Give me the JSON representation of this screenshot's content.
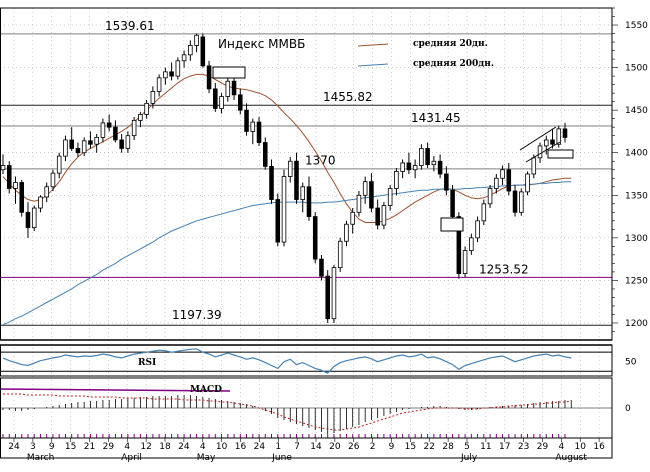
{
  "chart_data": {
    "type": "candlestick",
    "title": "Индекс ММВБ",
    "legend": [
      {
        "label": "средняя 20дн.",
        "color": "#a0522d"
      },
      {
        "label": "средняя 200дн.",
        "color": "#4682b4"
      }
    ],
    "ylim": [
      1180,
      1570
    ],
    "y_ticks": [
      1200,
      1250,
      1300,
      1350,
      1400,
      1450,
      1500,
      1550
    ],
    "levels": [
      {
        "value": 1539.61,
        "label": "1539.61",
        "line": true,
        "color": "#7f7f7f"
      },
      {
        "value": 1455.82,
        "label": "1455.82",
        "line": true,
        "color": "#202020"
      },
      {
        "value": 1431.45,
        "label": "1431.45",
        "line": true,
        "color": "#7f7f7f"
      },
      {
        "value": 1370,
        "label": "1370",
        "line": false,
        "color": "#7f7f7f"
      },
      {
        "value": 1381,
        "label": "",
        "line": true,
        "color": "#7f7f7f"
      },
      {
        "value": 1253.52,
        "label": "1253.52",
        "line": true,
        "color": "#800080"
      },
      {
        "value": 1197.39,
        "label": "1197.39",
        "line": true,
        "color": "#202020"
      }
    ],
    "x_tick_labels": [
      "24",
      "3",
      "9",
      "15",
      "21",
      "29",
      "4",
      "12",
      "18",
      "24",
      "4",
      "10",
      "16",
      "24",
      "1",
      "7",
      "14",
      "20",
      "26",
      "2",
      "9",
      "15",
      "22",
      "28",
      "5",
      "11",
      "17",
      "23",
      "29",
      "4",
      "10",
      "16"
    ],
    "month_labels": [
      "March",
      "April",
      "May",
      "June",
      "July",
      "August"
    ],
    "candles": [
      [
        1380,
        1398,
        1375,
        1385
      ],
      [
        1385,
        1390,
        1352,
        1358
      ],
      [
        1358,
        1372,
        1340,
        1365
      ],
      [
        1365,
        1368,
        1325,
        1330
      ],
      [
        1330,
        1342,
        1300,
        1312
      ],
      [
        1312,
        1338,
        1308,
        1335
      ],
      [
        1335,
        1350,
        1330,
        1348
      ],
      [
        1348,
        1365,
        1342,
        1360
      ],
      [
        1360,
        1380,
        1355,
        1376
      ],
      [
        1376,
        1400,
        1370,
        1396
      ],
      [
        1396,
        1420,
        1390,
        1415
      ],
      [
        1415,
        1430,
        1402,
        1405
      ],
      [
        1405,
        1412,
        1395,
        1400
      ],
      [
        1400,
        1418,
        1396,
        1414
      ],
      [
        1414,
        1425,
        1405,
        1410
      ],
      [
        1410,
        1422,
        1400,
        1418
      ],
      [
        1418,
        1440,
        1412,
        1435
      ],
      [
        1435,
        1445,
        1425,
        1430
      ],
      [
        1430,
        1438,
        1412,
        1415
      ],
      [
        1415,
        1422,
        1400,
        1405
      ],
      [
        1405,
        1425,
        1400,
        1420
      ],
      [
        1420,
        1442,
        1415,
        1438
      ],
      [
        1438,
        1448,
        1430,
        1445
      ],
      [
        1445,
        1462,
        1440,
        1458
      ],
      [
        1458,
        1478,
        1452,
        1472
      ],
      [
        1472,
        1492,
        1466,
        1488
      ],
      [
        1488,
        1500,
        1480,
        1495
      ],
      [
        1495,
        1506,
        1485,
        1490
      ],
      [
        1490,
        1512,
        1486,
        1508
      ],
      [
        1508,
        1520,
        1500,
        1515
      ],
      [
        1515,
        1532,
        1508,
        1526
      ],
      [
        1526,
        1540,
        1518,
        1538
      ],
      [
        1536,
        1540,
        1500,
        1502
      ],
      [
        1502,
        1508,
        1470,
        1475
      ],
      [
        1475,
        1482,
        1448,
        1452
      ],
      [
        1452,
        1470,
        1446,
        1466
      ],
      [
        1466,
        1488,
        1460,
        1484
      ],
      [
        1484,
        1490,
        1462,
        1468
      ],
      [
        1468,
        1475,
        1445,
        1450
      ],
      [
        1450,
        1458,
        1420,
        1425
      ],
      [
        1425,
        1440,
        1410,
        1436
      ],
      [
        1436,
        1442,
        1408,
        1412
      ],
      [
        1412,
        1418,
        1380,
        1384
      ],
      [
        1384,
        1392,
        1340,
        1345
      ],
      [
        1345,
        1352,
        1290,
        1295
      ],
      [
        1295,
        1380,
        1290,
        1372
      ],
      [
        1372,
        1395,
        1365,
        1390
      ],
      [
        1390,
        1400,
        1340,
        1345
      ],
      [
        1345,
        1365,
        1330,
        1360
      ],
      [
        1360,
        1372,
        1320,
        1325
      ],
      [
        1325,
        1330,
        1270,
        1275
      ],
      [
        1275,
        1280,
        1250,
        1255
      ],
      [
        1255,
        1262,
        1200,
        1205
      ],
      [
        1205,
        1268,
        1200,
        1265
      ],
      [
        1265,
        1300,
        1260,
        1296
      ],
      [
        1296,
        1320,
        1290,
        1316
      ],
      [
        1316,
        1335,
        1305,
        1330
      ],
      [
        1330,
        1355,
        1325,
        1350
      ],
      [
        1350,
        1372,
        1340,
        1366
      ],
      [
        1366,
        1376,
        1330,
        1335
      ],
      [
        1335,
        1345,
        1310,
        1315
      ],
      [
        1315,
        1342,
        1310,
        1338
      ],
      [
        1338,
        1362,
        1332,
        1358
      ],
      [
        1358,
        1382,
        1350,
        1378
      ],
      [
        1378,
        1392,
        1370,
        1388
      ],
      [
        1388,
        1400,
        1375,
        1380
      ],
      [
        1380,
        1392,
        1370,
        1385
      ],
      [
        1385,
        1410,
        1380,
        1405
      ],
      [
        1405,
        1412,
        1382,
        1386
      ],
      [
        1386,
        1396,
        1378,
        1390
      ],
      [
        1390,
        1398,
        1370,
        1375
      ],
      [
        1375,
        1384,
        1350,
        1356
      ],
      [
        1356,
        1362,
        1320,
        1325
      ],
      [
        1325,
        1330,
        1252,
        1258
      ],
      [
        1258,
        1290,
        1254,
        1285
      ],
      [
        1285,
        1305,
        1280,
        1300
      ],
      [
        1300,
        1325,
        1295,
        1320
      ],
      [
        1320,
        1345,
        1315,
        1340
      ],
      [
        1340,
        1362,
        1335,
        1358
      ],
      [
        1358,
        1375,
        1352,
        1370
      ],
      [
        1370,
        1385,
        1362,
        1380
      ],
      [
        1380,
        1388,
        1350,
        1355
      ],
      [
        1355,
        1362,
        1325,
        1330
      ],
      [
        1330,
        1358,
        1326,
        1354
      ],
      [
        1354,
        1378,
        1350,
        1375
      ],
      [
        1375,
        1398,
        1370,
        1394
      ],
      [
        1394,
        1412,
        1388,
        1408
      ],
      [
        1408,
        1420,
        1398,
        1415
      ],
      [
        1415,
        1428,
        1405,
        1410
      ],
      [
        1410,
        1432,
        1406,
        1428
      ],
      [
        1428,
        1435,
        1412,
        1418
      ]
    ],
    "sma20": [
      1372,
      1364,
      1356,
      1350,
      1345,
      1343,
      1345,
      1350,
      1357,
      1366,
      1377,
      1387,
      1395,
      1401,
      1405,
      1409,
      1413,
      1417,
      1421,
      1425,
      1430,
      1436,
      1443,
      1450,
      1457,
      1464,
      1470,
      1476,
      1482,
      1487,
      1490,
      1492,
      1492,
      1490,
      1486,
      1482,
      1478,
      1476,
      1475,
      1474,
      1472,
      1470,
      1467,
      1462,
      1455,
      1447,
      1440,
      1432,
      1423,
      1413,
      1402,
      1390,
      1377,
      1365,
      1352,
      1340,
      1330,
      1322,
      1318,
      1318,
      1318,
      1320,
      1323,
      1327,
      1332,
      1337,
      1342,
      1346,
      1350,
      1354,
      1357,
      1358,
      1357,
      1354,
      1350,
      1347,
      1346,
      1347,
      1350,
      1354,
      1358,
      1361,
      1362,
      1362,
      1362,
      1363,
      1364,
      1366,
      1368,
      1369,
      1370,
      1370
    ],
    "sma200": [
      1198,
      1201,
      1205,
      1208,
      1212,
      1216,
      1220,
      1224,
      1228,
      1232,
      1236,
      1240,
      1245,
      1249,
      1253,
      1257,
      1262,
      1266,
      1270,
      1275,
      1279,
      1283,
      1287,
      1291,
      1295,
      1300,
      1304,
      1308,
      1311,
      1314,
      1317,
      1320,
      1322,
      1324,
      1326,
      1328,
      1330,
      1332,
      1334,
      1336,
      1338,
      1339,
      1340,
      1341,
      1342,
      1342,
      1342,
      1342,
      1342,
      1341,
      1341,
      1341,
      1342,
      1342,
      1343,
      1344,
      1345,
      1346,
      1347,
      1348,
      1349,
      1350,
      1351,
      1352,
      1353,
      1354,
      1355,
      1356,
      1356,
      1357,
      1357,
      1357,
      1357,
      1357,
      1358,
      1358,
      1359,
      1359,
      1360,
      1360,
      1361,
      1361,
      1362,
      1362,
      1363,
      1363,
      1364,
      1364,
      1365,
      1365,
      1366,
      1366
    ],
    "rsi": {
      "label": "RSI",
      "ylim": [
        20,
        85
      ],
      "ticks": [
        50
      ],
      "levels": [
        70,
        30
      ],
      "values": [
        58,
        52,
        48,
        44,
        42,
        47,
        52,
        55,
        58,
        60,
        64,
        62,
        60,
        62,
        61,
        63,
        66,
        64,
        60,
        58,
        62,
        66,
        68,
        70,
        72,
        74,
        73,
        70,
        72,
        74,
        76,
        77,
        70,
        66,
        60,
        64,
        68,
        64,
        60,
        55,
        58,
        54,
        48,
        42,
        36,
        50,
        55,
        44,
        48,
        42,
        36,
        32,
        26,
        40,
        48,
        52,
        55,
        58,
        60,
        56,
        50,
        54,
        58,
        62,
        64,
        60,
        62,
        66,
        58,
        60,
        56,
        50,
        44,
        34,
        42,
        46,
        50,
        54,
        58,
        60,
        62,
        56,
        50,
        54,
        58,
        62,
        64,
        66,
        62,
        64,
        60,
        58
      ]
    },
    "macd": {
      "label": "MACD",
      "ylim": [
        -30,
        30
      ],
      "ticks": [
        0
      ],
      "values": [
        -2,
        -2,
        -3,
        -3,
        -2,
        -1,
        0,
        1,
        2,
        3,
        4,
        5,
        6,
        6,
        7,
        7,
        8,
        8,
        9,
        9,
        10,
        10,
        11,
        11,
        12,
        12,
        12,
        12,
        13,
        13,
        13,
        12,
        11,
        10,
        9,
        8,
        7,
        6,
        5,
        4,
        2,
        0,
        -3,
        -6,
        -10,
        -12,
        -14,
        -16,
        -18,
        -20,
        -22,
        -24,
        -26,
        -25,
        -23,
        -21,
        -19,
        -17,
        -14,
        -12,
        -10,
        -8,
        -6,
        -4,
        -2,
        -1,
        0,
        1,
        1,
        2,
        2,
        1,
        0,
        -1,
        -2,
        -2,
        -1,
        0,
        1,
        1,
        2,
        2,
        3,
        3,
        4,
        5,
        6,
        6,
        7,
        7,
        8,
        8
      ],
      "signal": [
        14,
        14,
        14,
        14,
        13,
        13,
        13,
        13,
        13,
        12,
        12,
        12,
        12,
        12,
        11,
        11,
        11,
        11,
        11,
        10,
        10,
        10,
        10,
        10,
        9,
        9,
        9,
        9,
        9,
        8,
        8,
        8,
        8,
        7,
        7,
        6,
        6,
        5,
        4,
        3,
        2,
        0,
        -2,
        -4,
        -6,
        -9,
        -11,
        -13,
        -15,
        -17,
        -19,
        -20,
        -21,
        -22,
        -22,
        -21,
        -20,
        -19,
        -17,
        -15,
        -13,
        -11,
        -9,
        -7,
        -5,
        -4,
        -3,
        -2,
        -1,
        0,
        0,
        0,
        0,
        0,
        -1,
        -1,
        -1,
        0,
        0,
        1,
        1,
        2,
        2,
        3,
        3,
        4,
        4,
        5,
        5,
        6,
        6,
        7
      ]
    }
  }
}
